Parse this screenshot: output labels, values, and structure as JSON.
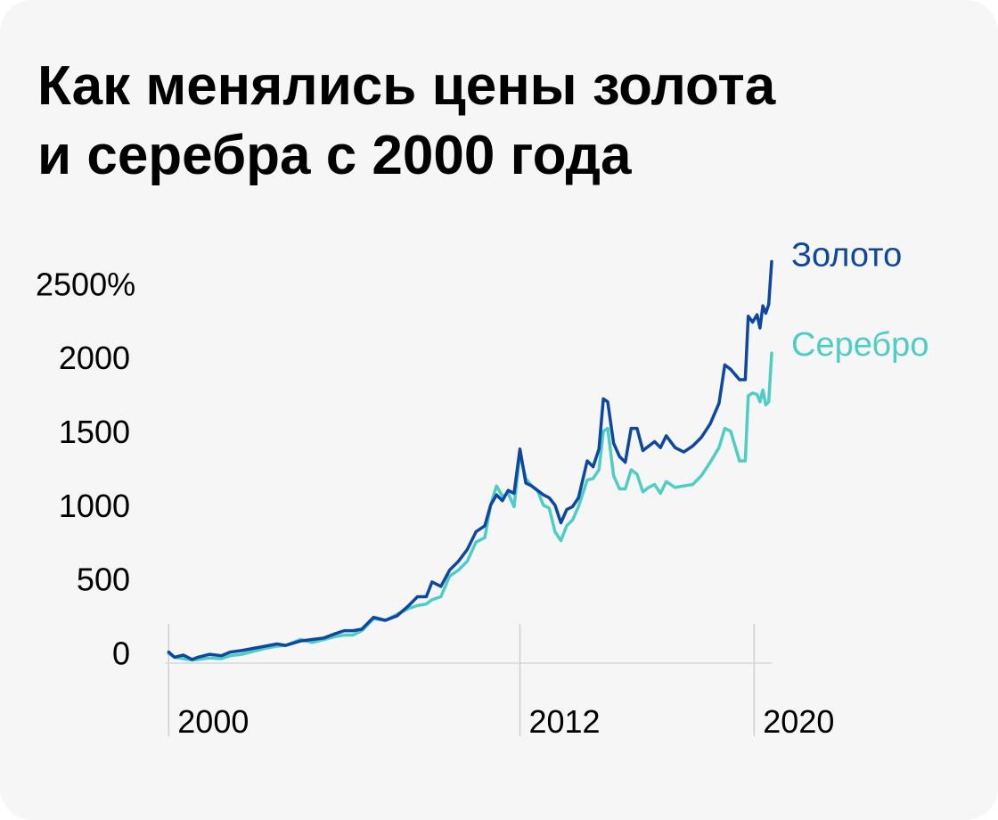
{
  "chart": {
    "title_lines": [
      "Как менялись цены золота",
      "и серебра с 2000 года"
    ],
    "y_unit_suffix": "%"
  },
  "chart_data": {
    "type": "line",
    "title": "Как менялись цены золота и серебра с 2000 года",
    "xlabel": "",
    "ylabel": "",
    "xlim": [
      1999.9,
      2020.6
    ],
    "ylim": [
      -70,
      2550
    ],
    "y_ticks": [
      0,
      500,
      1000,
      1500,
      2000,
      2500
    ],
    "y_tick_labels": [
      "0",
      "500",
      "1000",
      "1500",
      "2000",
      "2500%"
    ],
    "x_ticks": [
      2000,
      2012,
      2020
    ],
    "x_tick_labels": [
      "2000",
      "2012",
      "2020"
    ],
    "grid": "vertical lines at labeled years",
    "series": [
      {
        "name": "Золото",
        "color": "#0d47a1",
        "x": [
          2000.0,
          2000.2,
          2000.5,
          2000.8,
          2001.0,
          2001.4,
          2001.8,
          2002.1,
          2002.5,
          2002.9,
          2003.3,
          2003.7,
          2004.0,
          2004.5,
          2004.9,
          2005.3,
          2005.7,
          2006.0,
          2006.3,
          2006.6,
          2007.0,
          2007.4,
          2007.8,
          2008.2,
          2008.5,
          2008.8,
          2009.0,
          2009.3,
          2009.6,
          2009.9,
          2010.2,
          2010.5,
          2010.8,
          2011.0,
          2011.2,
          2011.4,
          2011.6,
          2011.8,
          2012.0,
          2012.2,
          2012.4,
          2012.6,
          2012.8,
          2013.0,
          2013.2,
          2013.4,
          2013.6,
          2013.8,
          2014.0,
          2014.3,
          2014.5,
          2014.7,
          2014.85,
          2015.0,
          2015.2,
          2015.4,
          2015.6,
          2015.8,
          2016.0,
          2016.2,
          2016.4,
          2016.6,
          2016.8,
          2017.0,
          2017.3,
          2017.6,
          2017.9,
          2018.2,
          2018.5,
          2018.8,
          2019.0,
          2019.2,
          2019.5,
          2019.7,
          2019.8,
          2019.95,
          2020.1,
          2020.2,
          2020.3,
          2020.4,
          2020.5,
          2020.6
        ],
        "values": [
          5,
          -30,
          -15,
          -45,
          -30,
          -10,
          -20,
          5,
          15,
          30,
          45,
          60,
          50,
          80,
          90,
          100,
          130,
          150,
          150,
          160,
          240,
          220,
          250,
          320,
          380,
          380,
          480,
          450,
          560,
          620,
          700,
          820,
          860,
          1000,
          1070,
          1030,
          1100,
          1080,
          1380,
          1150,
          1130,
          1100,
          1070,
          1050,
          1000,
          880,
          970,
          990,
          1050,
          1300,
          1260,
          1380,
          1720,
          1700,
          1420,
          1330,
          1290,
          1520,
          1520,
          1370,
          1400,
          1430,
          1390,
          1470,
          1390,
          1360,
          1400,
          1460,
          1550,
          1690,
          1950,
          1920,
          1850,
          1850,
          2280,
          2240,
          2290,
          2200,
          2350,
          2300,
          2360,
          2650
        ]
      },
      {
        "name": "Серебро",
        "color": "#4ecdc4",
        "x": [
          2000.0,
          2000.2,
          2000.5,
          2000.8,
          2001.0,
          2001.4,
          2001.8,
          2002.1,
          2002.5,
          2002.9,
          2003.3,
          2003.7,
          2004.0,
          2004.5,
          2004.9,
          2005.3,
          2005.7,
          2006.0,
          2006.3,
          2006.6,
          2007.0,
          2007.4,
          2007.8,
          2008.2,
          2008.5,
          2008.8,
          2009.0,
          2009.3,
          2009.6,
          2009.9,
          2010.2,
          2010.5,
          2010.8,
          2011.0,
          2011.2,
          2011.4,
          2011.6,
          2011.8,
          2012.0,
          2012.2,
          2012.4,
          2012.6,
          2012.8,
          2013.0,
          2013.2,
          2013.4,
          2013.6,
          2013.8,
          2014.0,
          2014.3,
          2014.5,
          2014.7,
          2014.85,
          2015.0,
          2015.2,
          2015.4,
          2015.6,
          2015.8,
          2016.0,
          2016.2,
          2016.4,
          2016.6,
          2016.8,
          2017.0,
          2017.3,
          2017.6,
          2017.9,
          2018.2,
          2018.5,
          2018.8,
          2019.0,
          2019.2,
          2019.5,
          2019.7,
          2019.8,
          2019.95,
          2020.1,
          2020.2,
          2020.3,
          2020.4,
          2020.5,
          2020.6
        ],
        "values": [
          -5,
          -30,
          -40,
          -50,
          -45,
          -35,
          -40,
          -20,
          -10,
          10,
          30,
          45,
          50,
          90,
          70,
          90,
          110,
          120,
          120,
          150,
          230,
          220,
          260,
          300,
          320,
          330,
          360,
          380,
          520,
          560,
          620,
          750,
          780,
          1000,
          1130,
          1060,
          1080,
          990,
          1350,
          1180,
          1130,
          1100,
          1000,
          980,
          820,
          760,
          860,
          900,
          990,
          1170,
          1180,
          1240,
          1500,
          1520,
          1200,
          1110,
          1110,
          1240,
          1210,
          1090,
          1120,
          1140,
          1080,
          1160,
          1120,
          1130,
          1140,
          1200,
          1290,
          1390,
          1520,
          1500,
          1300,
          1300,
          1740,
          1760,
          1750,
          1700,
          1780,
          1680,
          1700,
          2030
        ]
      }
    ]
  }
}
